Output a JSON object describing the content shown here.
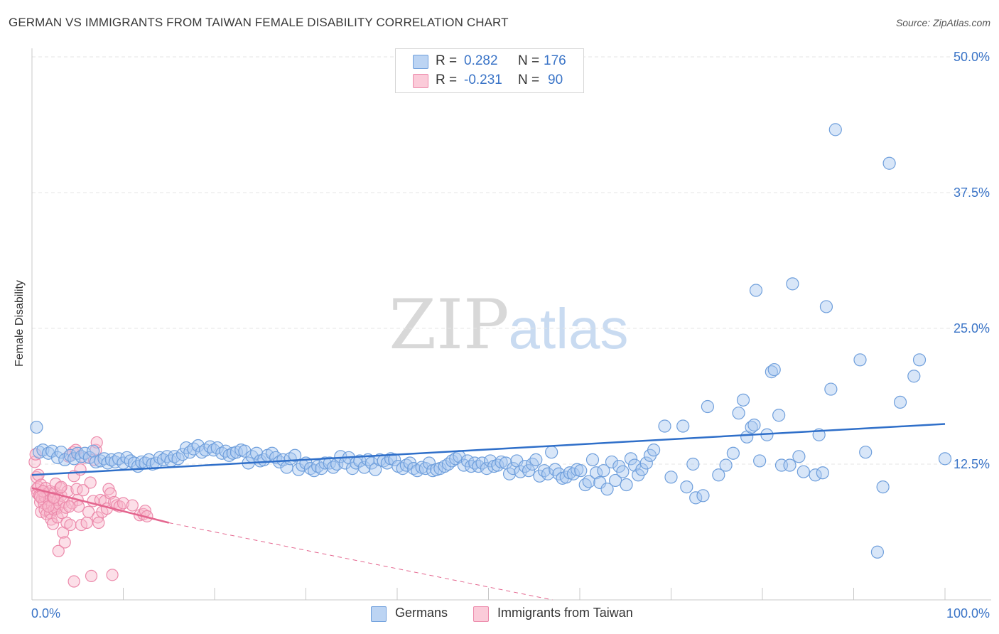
{
  "title": "GERMAN VS IMMIGRANTS FROM TAIWAN FEMALE DISABILITY CORRELATION CHART",
  "source": "Source: ZipAtlas.com",
  "watermark": {
    "zip": "ZIP",
    "atlas": "atlas"
  },
  "legend": {
    "rows": [
      {
        "r_label": "R =",
        "r_value": "0.282",
        "n_label": "N =",
        "n_value": "176"
      },
      {
        "r_label": "R =",
        "r_value": "-0.231",
        "n_label": "N =",
        "n_value": "90"
      }
    ]
  },
  "bottom_legend": [
    {
      "label": "Germans"
    },
    {
      "label": "Immigrants from Taiwan"
    }
  ],
  "colors": {
    "germans_fill": "#a9c8f0",
    "germans_stroke": "#6f9fdc",
    "germans_line": "#2f6fc9",
    "taiwan_fill": "#f8b8cc",
    "taiwan_stroke": "#ec8aab",
    "taiwan_line": "#e4668f",
    "tick_label": "#3a74c7",
    "grid": "#e4e4e4"
  },
  "chart_data": {
    "type": "scatter",
    "title": "GERMAN VS IMMIGRANTS FROM TAIWAN FEMALE DISABILITY CORRELATION CHART",
    "xlabel": "",
    "ylabel": "Female Disability",
    "xlim": [
      0,
      100
    ],
    "ylim": [
      0,
      50
    ],
    "x_tick_labels": [
      "0.0%",
      "100.0%"
    ],
    "y_ticks": [
      12.5,
      25.0,
      37.5,
      50.0
    ],
    "y_tick_labels": [
      "12.5%",
      "25.0%",
      "37.5%",
      "50.0%"
    ],
    "grid": true,
    "legend_position": "top-center",
    "series": [
      {
        "name": "Germans",
        "r": 0.282,
        "n": 176,
        "trend": {
          "x": [
            0,
            100
          ],
          "y": [
            11.5,
            16.2
          ]
        },
        "points": [
          [
            0.5,
            15.9
          ],
          [
            0.8,
            13.6
          ],
          [
            1.2,
            13.8
          ],
          [
            1.8,
            13.5
          ],
          [
            2.2,
            13.7
          ],
          [
            2.8,
            13.1
          ],
          [
            3.2,
            13.6
          ],
          [
            3.6,
            12.9
          ],
          [
            4.2,
            13.3
          ],
          [
            4.6,
            13.0
          ],
          [
            5.0,
            13.5
          ],
          [
            5.4,
            13.2
          ],
          [
            5.8,
            13.5
          ],
          [
            6.3,
            13.1
          ],
          [
            6.7,
            13.7
          ],
          [
            7.0,
            12.7
          ],
          [
            7.5,
            12.8
          ],
          [
            7.9,
            13.0
          ],
          [
            8.3,
            12.6
          ],
          [
            8.7,
            12.9
          ],
          [
            9.1,
            12.7
          ],
          [
            9.5,
            13.0
          ],
          [
            10.0,
            12.6
          ],
          [
            10.4,
            13.1
          ],
          [
            10.8,
            12.8
          ],
          [
            11.2,
            12.6
          ],
          [
            11.6,
            12.3
          ],
          [
            12.0,
            12.7
          ],
          [
            12.4,
            12.6
          ],
          [
            12.8,
            12.9
          ],
          [
            13.2,
            12.5
          ],
          [
            13.6,
            12.6
          ],
          [
            14.0,
            13.1
          ],
          [
            14.4,
            12.9
          ],
          [
            14.8,
            13.2
          ],
          [
            15.2,
            12.8
          ],
          [
            15.6,
            13.2
          ],
          [
            16.0,
            13.0
          ],
          [
            16.5,
            13.4
          ],
          [
            16.9,
            14.0
          ],
          [
            17.3,
            13.6
          ],
          [
            17.7,
            13.9
          ],
          [
            18.2,
            14.2
          ],
          [
            18.6,
            13.6
          ],
          [
            19.0,
            13.8
          ],
          [
            19.5,
            14.1
          ],
          [
            19.9,
            13.8
          ],
          [
            20.3,
            14.0
          ],
          [
            20.8,
            13.5
          ],
          [
            21.2,
            13.7
          ],
          [
            21.6,
            13.3
          ],
          [
            22.0,
            13.5
          ],
          [
            22.4,
            13.6
          ],
          [
            22.9,
            13.8
          ],
          [
            23.3,
            13.7
          ],
          [
            23.7,
            12.6
          ],
          [
            24.1,
            13.2
          ],
          [
            24.6,
            13.5
          ],
          [
            25.0,
            12.8
          ],
          [
            25.4,
            12.9
          ],
          [
            25.8,
            13.3
          ],
          [
            26.3,
            13.5
          ],
          [
            26.7,
            13.1
          ],
          [
            27.1,
            12.7
          ],
          [
            27.5,
            12.9
          ],
          [
            27.9,
            12.2
          ],
          [
            28.3,
            13.0
          ],
          [
            28.8,
            13.3
          ],
          [
            29.2,
            12.0
          ],
          [
            29.6,
            12.4
          ],
          [
            30.0,
            12.6
          ],
          [
            30.5,
            12.1
          ],
          [
            30.9,
            11.9
          ],
          [
            31.3,
            12.3
          ],
          [
            31.7,
            12.1
          ],
          [
            32.1,
            12.6
          ],
          [
            32.6,
            12.6
          ],
          [
            33.0,
            12.2
          ],
          [
            33.4,
            12.5
          ],
          [
            33.8,
            13.2
          ],
          [
            34.3,
            12.6
          ],
          [
            34.7,
            13.1
          ],
          [
            35.1,
            12.1
          ],
          [
            35.5,
            12.6
          ],
          [
            35.9,
            12.8
          ],
          [
            36.4,
            12.2
          ],
          [
            36.8,
            12.9
          ],
          [
            37.2,
            12.6
          ],
          [
            37.6,
            12.0
          ],
          [
            38.1,
            12.9
          ],
          [
            38.5,
            12.8
          ],
          [
            38.9,
            12.6
          ],
          [
            39.3,
            13.0
          ],
          [
            39.7,
            12.9
          ],
          [
            40.1,
            12.3
          ],
          [
            40.6,
            12.1
          ],
          [
            41.0,
            12.4
          ],
          [
            41.4,
            12.6
          ],
          [
            41.8,
            12.1
          ],
          [
            42.2,
            11.9
          ],
          [
            42.7,
            12.2
          ],
          [
            43.1,
            12.1
          ],
          [
            43.5,
            12.6
          ],
          [
            43.9,
            11.9
          ],
          [
            44.3,
            12.0
          ],
          [
            44.7,
            12.1
          ],
          [
            45.2,
            12.3
          ],
          [
            45.6,
            12.5
          ],
          [
            46.0,
            12.8
          ],
          [
            46.4,
            13.0
          ],
          [
            46.8,
            13.2
          ],
          [
            47.3,
            12.4
          ],
          [
            47.7,
            12.8
          ],
          [
            48.1,
            12.3
          ],
          [
            48.5,
            12.6
          ],
          [
            48.9,
            12.3
          ],
          [
            49.3,
            12.6
          ],
          [
            49.8,
            12.1
          ],
          [
            50.2,
            12.8
          ],
          [
            50.6,
            12.3
          ],
          [
            51.0,
            12.4
          ],
          [
            51.4,
            12.7
          ],
          [
            51.9,
            12.6
          ],
          [
            52.3,
            11.6
          ],
          [
            52.7,
            12.1
          ],
          [
            53.1,
            12.8
          ],
          [
            53.5,
            11.8
          ],
          [
            54.0,
            12.3
          ],
          [
            54.4,
            11.9
          ],
          [
            54.8,
            12.5
          ],
          [
            55.2,
            12.9
          ],
          [
            55.6,
            11.4
          ],
          [
            56.1,
            11.9
          ],
          [
            56.5,
            11.6
          ],
          [
            56.9,
            13.6
          ],
          [
            57.3,
            12.0
          ],
          [
            57.7,
            11.6
          ],
          [
            58.1,
            11.2
          ],
          [
            58.5,
            11.3
          ],
          [
            58.9,
            11.7
          ],
          [
            59.3,
            11.6
          ],
          [
            59.7,
            12.0
          ],
          [
            60.1,
            11.9
          ],
          [
            60.6,
            10.6
          ],
          [
            61.0,
            10.9
          ],
          [
            61.4,
            12.9
          ],
          [
            61.8,
            11.7
          ],
          [
            62.2,
            10.8
          ],
          [
            62.6,
            11.9
          ],
          [
            63.0,
            10.2
          ],
          [
            63.5,
            12.7
          ],
          [
            63.9,
            11.0
          ],
          [
            64.3,
            12.3
          ],
          [
            64.7,
            11.8
          ],
          [
            65.1,
            10.6
          ],
          [
            65.6,
            13.0
          ],
          [
            66.0,
            12.4
          ],
          [
            66.4,
            11.5
          ],
          [
            66.8,
            12.0
          ],
          [
            67.3,
            12.6
          ],
          [
            67.7,
            13.3
          ],
          [
            68.1,
            13.8
          ],
          [
            69.3,
            16.0
          ],
          [
            70.0,
            11.3
          ],
          [
            71.3,
            16.0
          ],
          [
            71.7,
            10.4
          ],
          [
            72.4,
            12.5
          ],
          [
            72.7,
            9.4
          ],
          [
            73.5,
            9.6
          ],
          [
            74.0,
            17.8
          ],
          [
            75.2,
            11.5
          ],
          [
            76.0,
            12.4
          ],
          [
            76.8,
            13.5
          ],
          [
            77.4,
            17.2
          ],
          [
            77.9,
            18.4
          ],
          [
            78.3,
            15.0
          ],
          [
            78.8,
            15.9
          ],
          [
            79.1,
            16.1
          ],
          [
            79.3,
            28.5
          ],
          [
            79.7,
            12.8
          ],
          [
            80.5,
            15.2
          ],
          [
            81.0,
            21.0
          ],
          [
            81.3,
            21.2
          ],
          [
            81.8,
            17.0
          ],
          [
            82.1,
            12.4
          ],
          [
            83.0,
            12.4
          ],
          [
            83.3,
            29.1
          ],
          [
            84.0,
            13.2
          ],
          [
            84.5,
            11.8
          ],
          [
            85.8,
            11.5
          ],
          [
            86.2,
            15.2
          ],
          [
            86.6,
            11.7
          ],
          [
            87.0,
            27.0
          ],
          [
            87.5,
            19.4
          ],
          [
            88.0,
            43.3
          ],
          [
            90.7,
            22.1
          ],
          [
            91.3,
            13.6
          ],
          [
            92.6,
            4.4
          ],
          [
            93.2,
            10.4
          ],
          [
            93.9,
            40.2
          ],
          [
            95.1,
            18.2
          ],
          [
            96.6,
            20.6
          ],
          [
            97.2,
            22.1
          ],
          [
            100.0,
            13.0
          ]
        ]
      },
      {
        "name": "Immigrants from Taiwan",
        "r": -0.231,
        "n": 90,
        "trend": {
          "x": [
            0,
            15
          ],
          "y": [
            10.3,
            7.1
          ]
        },
        "trend_dashed": {
          "x": [
            15,
            57
          ],
          "y": [
            7.1,
            -1.8
          ]
        },
        "points": [
          [
            0.3,
            12.7
          ],
          [
            0.4,
            13.4
          ],
          [
            0.5,
            11.3
          ],
          [
            0.5,
            10.2
          ],
          [
            0.6,
            9.8
          ],
          [
            0.7,
            11.5
          ],
          [
            0.7,
            10.4
          ],
          [
            0.8,
            9.6
          ],
          [
            0.9,
            9.0
          ],
          [
            1.0,
            10.6
          ],
          [
            1.0,
            8.1
          ],
          [
            1.1,
            9.3
          ],
          [
            1.2,
            10.0
          ],
          [
            1.3,
            8.9
          ],
          [
            1.4,
            9.5
          ],
          [
            1.4,
            8.3
          ],
          [
            1.5,
            10.3
          ],
          [
            1.6,
            7.9
          ],
          [
            1.7,
            9.8
          ],
          [
            1.8,
            8.6
          ],
          [
            1.9,
            9.2
          ],
          [
            2.0,
            10.0
          ],
          [
            2.0,
            8.0
          ],
          [
            2.1,
            7.4
          ],
          [
            2.2,
            8.7
          ],
          [
            2.3,
            9.4
          ],
          [
            2.3,
            7.0
          ],
          [
            2.4,
            8.3
          ],
          [
            2.5,
            9.9
          ],
          [
            2.6,
            10.7
          ],
          [
            2.7,
            8.4
          ],
          [
            2.8,
            7.6
          ],
          [
            2.8,
            9.2
          ],
          [
            2.9,
            4.5
          ],
          [
            3.0,
            8.8
          ],
          [
            3.1,
            10.3
          ],
          [
            3.2,
            9.6
          ],
          [
            3.3,
            8.0
          ],
          [
            3.4,
            6.2
          ],
          [
            3.5,
            9.0
          ],
          [
            3.6,
            5.3
          ],
          [
            3.7,
            8.5
          ],
          [
            3.8,
            7.1
          ],
          [
            3.9,
            10.0
          ],
          [
            4.0,
            13.2
          ],
          [
            4.2,
            6.9
          ],
          [
            4.4,
            8.9
          ],
          [
            4.5,
            13.6
          ],
          [
            4.6,
            11.4
          ],
          [
            4.8,
            13.8
          ],
          [
            4.9,
            10.2
          ],
          [
            5.0,
            9.2
          ],
          [
            5.1,
            8.6
          ],
          [
            5.3,
            12.0
          ],
          [
            5.4,
            6.9
          ],
          [
            5.6,
            10.1
          ],
          [
            5.8,
            13.1
          ],
          [
            6.0,
            7.1
          ],
          [
            6.2,
            8.1
          ],
          [
            6.4,
            10.8
          ],
          [
            6.5,
            2.2
          ],
          [
            6.7,
            9.1
          ],
          [
            6.8,
            12.9
          ],
          [
            7.0,
            13.8
          ],
          [
            7.1,
            14.5
          ],
          [
            7.2,
            7.6
          ],
          [
            7.3,
            7.1
          ],
          [
            7.5,
            9.2
          ],
          [
            7.7,
            8.1
          ],
          [
            8.0,
            9.1
          ],
          [
            8.2,
            8.4
          ],
          [
            8.4,
            10.2
          ],
          [
            8.6,
            9.8
          ],
          [
            8.8,
            2.3
          ],
          [
            9.0,
            9.0
          ],
          [
            9.3,
            8.7
          ],
          [
            9.6,
            8.6
          ],
          [
            10.0,
            8.9
          ],
          [
            11.0,
            8.7
          ],
          [
            11.8,
            7.8
          ],
          [
            12.2,
            7.9
          ],
          [
            12.4,
            8.2
          ],
          [
            12.6,
            7.7
          ],
          [
            1.2,
            10.0
          ],
          [
            1.8,
            8.6
          ],
          [
            0.9,
            9.5
          ],
          [
            3.2,
            10.4
          ],
          [
            4.1,
            8.6
          ],
          [
            4.6,
            1.7
          ],
          [
            2.4,
            9.4
          ]
        ]
      }
    ]
  }
}
